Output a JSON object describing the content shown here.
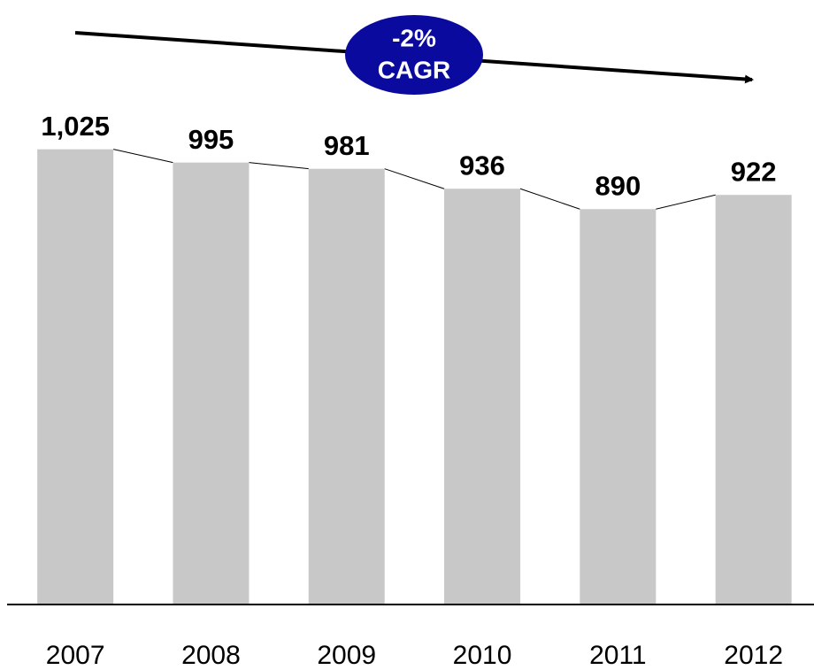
{
  "chart_data": {
    "type": "bar",
    "categories": [
      "2007",
      "2008",
      "2009",
      "2010",
      "2011",
      "2012"
    ],
    "values": [
      1025,
      995,
      981,
      936,
      890,
      922
    ],
    "value_labels": [
      "1,025",
      "995",
      "981",
      "936",
      "890",
      "922"
    ],
    "color": "#c8c8c8",
    "ylim": [
      0,
      1200
    ],
    "connector_lines": true,
    "annotations": [
      "-2%",
      "CAGR"
    ]
  }
}
